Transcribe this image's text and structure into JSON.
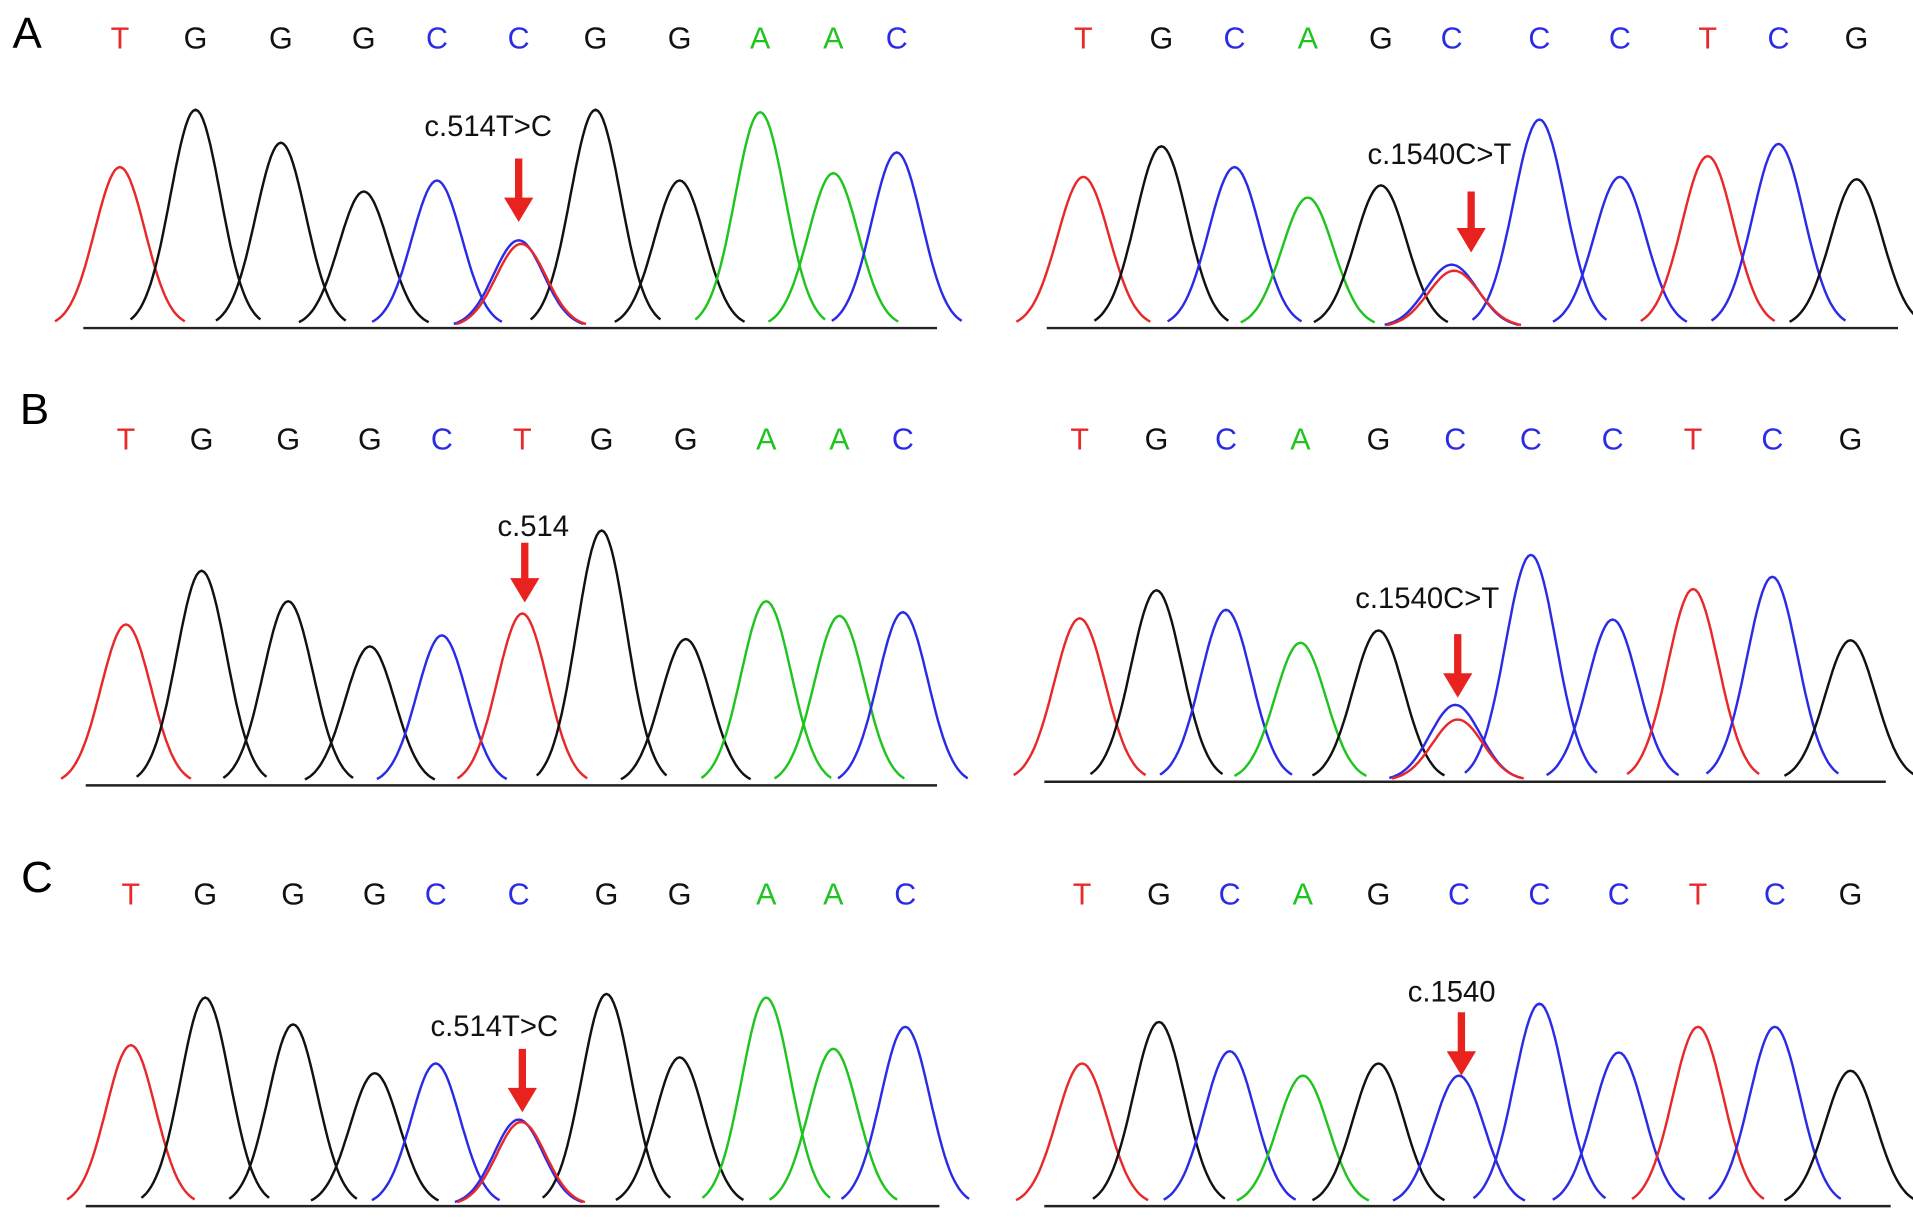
{
  "colors": {
    "T": "#e8282a",
    "G": "#111111",
    "C": "#2b2be6",
    "A": "#1fc41f"
  },
  "panels": [
    {
      "label": "A",
      "left": {
        "bases": [
          "T",
          "G",
          "G",
          "G",
          "C",
          "C",
          "G",
          "G",
          "A",
          "A",
          "C"
        ],
        "peaks": [
          131,
          178,
          151,
          111,
          120,
          71,
          178,
          120,
          176,
          126,
          143
        ],
        "annotation": "c.514T>C",
        "site": 5,
        "second_peak": {
          "base": "T",
          "height": 68
        }
      },
      "right": {
        "bases": [
          "T",
          "G",
          "C",
          "A",
          "G",
          "C",
          "C",
          "C",
          "T",
          "C",
          "G"
        ],
        "peaks": [
          123,
          148,
          131,
          106,
          116,
          51,
          170,
          123,
          140,
          150,
          121
        ],
        "annotation": "c.1540C>T",
        "site": 5,
        "second_peak": {
          "base": "T",
          "height": 46
        }
      }
    },
    {
      "label": "B",
      "left": {
        "bases": [
          "T",
          "G",
          "G",
          "G",
          "C",
          "T",
          "G",
          "G",
          "A",
          "A",
          "C"
        ],
        "peaks": [
          131,
          175,
          150,
          113,
          122,
          140,
          208,
          119,
          150,
          138,
          141
        ],
        "annotation": "c.514",
        "site": 5
      },
      "right": {
        "bases": [
          "T",
          "G",
          "C",
          "A",
          "G",
          "C",
          "C",
          "C",
          "T",
          "C",
          "G"
        ],
        "peaks": [
          133,
          156,
          140,
          113,
          123,
          62,
          185,
          132,
          157,
          167,
          115
        ],
        "annotation": "c.1540C>T",
        "site": 5,
        "second_peak": {
          "base": "T",
          "height": 50
        }
      }
    },
    {
      "label": "C",
      "left": {
        "bases": [
          "T",
          "G",
          "G",
          "G",
          "C",
          "C",
          "G",
          "G",
          "A",
          "A",
          "C"
        ],
        "peaks": [
          131,
          170,
          148,
          108,
          116,
          70,
          173,
          121,
          170,
          128,
          146
        ],
        "annotation": "c.514T>C",
        "site": 5,
        "second_peak": {
          "base": "T",
          "height": 68
        }
      },
      "right": {
        "bases": [
          "T",
          "G",
          "C",
          "A",
          "G",
          "C",
          "C",
          "C",
          "T",
          "C",
          "G"
        ],
        "peaks": [
          116,
          150,
          126,
          106,
          116,
          106,
          165,
          125,
          146,
          146,
          110
        ],
        "annotation": "c.1540",
        "site": 5
      }
    }
  ]
}
